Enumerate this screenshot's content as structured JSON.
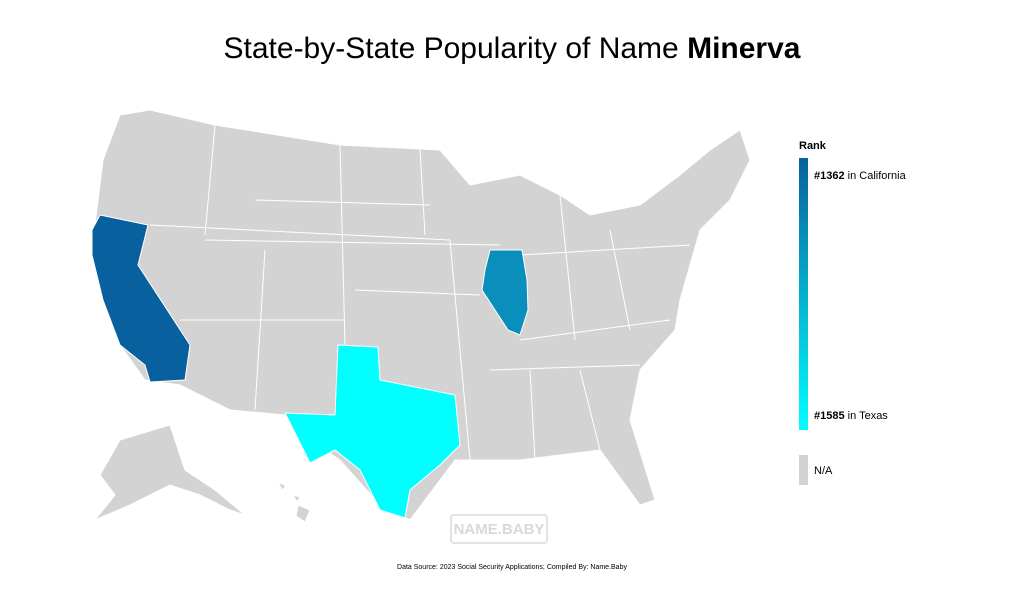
{
  "title": {
    "text": "State-by-State Popularity of Name",
    "name": "Minerva"
  },
  "legend": {
    "title": "Rank",
    "entries": [
      {
        "rank": {
          "value": 1362,
          "label": "#1362"
        },
        "text": "in California",
        "color": "#09609e"
      },
      {
        "rank": {
          "value": 1585,
          "label": "#1585"
        },
        "text": "in Texas",
        "color": "#00ffff"
      }
    ],
    "na": {
      "text": "N/A",
      "color": "#d3d3d3"
    }
  },
  "map": {
    "other_ranks": [
      {
        "rank": 1450,
        "color": "#0a8fbd"
      }
    ]
  },
  "watermark": "NAME.BABY",
  "source": "Data Source: 2023 Social Security Applications; Compiled By: Name.Baby"
}
